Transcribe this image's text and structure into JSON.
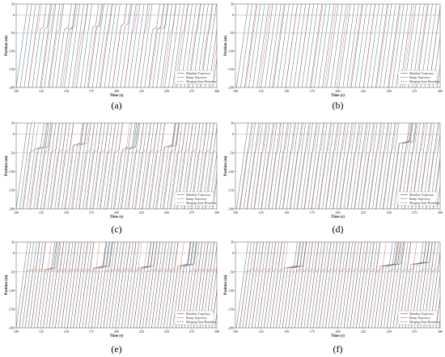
{
  "colors": {
    "mainline": "#5f7d8e",
    "ramp": "#d0452f",
    "boundary": "#8a8a8a"
  },
  "chart_data": [
    {
      "type": "line",
      "caption": "(a)",
      "xlabel": "Time (s)",
      "ylabel": "Position (m)",
      "xlim": [
        100,
        300
      ],
      "ylim": [
        -200,
        30
      ],
      "xticks": [
        "100",
        "125",
        "150",
        "175",
        "200",
        "225",
        "250",
        "275",
        "300"
      ],
      "yticks": [
        "30",
        "0",
        "-50",
        "-100",
        "-150",
        "-200"
      ],
      "merging_zone": [
        0,
        -50
      ],
      "legend": {
        "placement": "bottom-right",
        "entries": [
          "Mainline Trajectory",
          "Ramp Trajectory",
          "Merging Zone Boundary"
        ]
      },
      "mainline_entries": [
        100,
        104,
        108,
        112,
        116,
        120,
        124,
        128,
        132,
        136,
        140,
        144,
        148,
        152,
        156,
        160,
        164,
        168,
        172,
        176,
        180,
        184,
        188,
        192,
        196,
        200,
        204,
        208,
        212,
        216,
        220,
        224,
        228,
        232,
        236,
        240,
        244,
        248,
        252,
        256,
        260,
        264,
        268,
        272,
        276,
        280,
        284,
        288,
        292,
        296
      ],
      "ramp_entries": [
        112,
        125,
        133,
        146,
        158,
        171,
        183,
        196,
        208,
        220,
        233,
        246,
        258,
        271,
        283,
        294
      ],
      "slowdowns": [
        {
          "time": 125,
          "position": -40,
          "delay": 3
        },
        {
          "time": 150,
          "position": -40,
          "delay": 4
        },
        {
          "time": 178,
          "position": -35,
          "delay": 3
        },
        {
          "time": 205,
          "position": -30,
          "delay": 3
        },
        {
          "time": 240,
          "position": -40,
          "delay": 4
        }
      ],
      "ramp_wait": 2,
      "speed_mps": 20
    },
    {
      "type": "line",
      "caption": "(b)",
      "xlabel": "Time (s)",
      "ylabel": "Position (m)",
      "xlim": [
        100,
        300
      ],
      "ylim": [
        -200,
        30
      ],
      "xticks": [
        "100",
        "125",
        "150",
        "175",
        "200",
        "225",
        "250",
        "275",
        "300"
      ],
      "yticks": [
        "30",
        "0",
        "-50",
        "-100",
        "-150",
        "-200"
      ],
      "merging_zone": [
        0,
        -50
      ],
      "legend": {
        "placement": "bottom-right",
        "entries": [
          "Mainline Trajectory",
          "Ramp Trajectory",
          "Merging Zone Boundary"
        ]
      },
      "mainline_entries": [
        101,
        105,
        109,
        113,
        117,
        121,
        125,
        129,
        133,
        137,
        141,
        145,
        149,
        153,
        157,
        161,
        165,
        169,
        173,
        177,
        181,
        185,
        189,
        193,
        197,
        201,
        205,
        209,
        213,
        217,
        221,
        225,
        229,
        233,
        237,
        241,
        245,
        249,
        253,
        257,
        261,
        265,
        269,
        273,
        277,
        281,
        285,
        289,
        293,
        297
      ],
      "ramp_entries": [
        110,
        123,
        136,
        149,
        161,
        174,
        187,
        199,
        212,
        225,
        238,
        250,
        263,
        276,
        289
      ],
      "slowdowns": [],
      "ramp_wait": 0,
      "speed_mps": 20
    },
    {
      "type": "line",
      "caption": "(c)",
      "xlabel": "Time (s)",
      "ylabel": "Position (m)",
      "xlim": [
        100,
        300
      ],
      "ylim": [
        -200,
        30
      ],
      "xticks": [
        "100",
        "125",
        "150",
        "175",
        "200",
        "225",
        "250",
        "275",
        "300"
      ],
      "yticks": [
        "30",
        "0",
        "-50",
        "-100",
        "-150",
        "-200"
      ],
      "merging_zone": [
        0,
        -50
      ],
      "legend": {
        "placement": "bottom-right",
        "entries": [
          "Mainline Trajectory",
          "Ramp Trajectory",
          "Merging Zone Boundary"
        ]
      },
      "mainline_entries": [
        100,
        103.5,
        107,
        110.5,
        114,
        117.5,
        121,
        124.5,
        128,
        131.5,
        135,
        138.5,
        142,
        145.5,
        149,
        152.5,
        156,
        159.5,
        163,
        166.5,
        170,
        173.5,
        177,
        180.5,
        184,
        187.5,
        191,
        194.5,
        198,
        201.5,
        205,
        208.5,
        212,
        215.5,
        219,
        222.5,
        226,
        229.5,
        233,
        236.5,
        240,
        243.5,
        247,
        250.5,
        254,
        257.5,
        261,
        264.5,
        268,
        271.5,
        275,
        278.5,
        282,
        285.5,
        289,
        292.5,
        296
      ],
      "ramp_entries": [
        106,
        113,
        120,
        127,
        134,
        141,
        148,
        155,
        162,
        169,
        176,
        183,
        190,
        197,
        204,
        211,
        218,
        225,
        232,
        239,
        246,
        253,
        260,
        267,
        274,
        281,
        288,
        295
      ],
      "slowdowns": [
        {
          "time": 122,
          "position": -40,
          "delay": 6
        },
        {
          "time": 160,
          "position": -30,
          "delay": 7
        },
        {
          "time": 210,
          "position": -40,
          "delay": 6
        },
        {
          "time": 250,
          "position": -35,
          "delay": 8
        }
      ],
      "ramp_wait": 5,
      "speed_mps": 20
    },
    {
      "type": "line",
      "caption": "(d)",
      "xlabel": "Time (s)",
      "ylabel": "Position (m)",
      "xlim": [
        100,
        300
      ],
      "ylim": [
        -200,
        30
      ],
      "xticks": [
        "100",
        "125",
        "150",
        "175",
        "200",
        "225",
        "250",
        "275",
        "300"
      ],
      "yticks": [
        "30",
        "0",
        "-50",
        "-100",
        "-150",
        "-200"
      ],
      "merging_zone": [
        0,
        -50
      ],
      "legend": {
        "placement": "bottom-right",
        "entries": [
          "Mainline Trajectory",
          "Ramp Trajectory",
          "Merging Zone Boundary"
        ]
      },
      "mainline_entries": [
        101,
        104.5,
        108,
        111.5,
        115,
        118.5,
        122,
        125.5,
        129,
        132.5,
        136,
        139.5,
        143,
        146.5,
        150,
        153.5,
        157,
        160.5,
        164,
        167.5,
        171,
        174.5,
        178,
        181.5,
        185,
        188.5,
        192,
        195.5,
        199,
        202.5,
        206,
        209.5,
        213,
        216.5,
        220,
        223.5,
        227,
        230.5,
        234,
        237.5,
        241,
        244.5,
        248,
        251.5,
        255,
        258.5,
        262,
        265.5,
        269,
        272.5,
        276,
        279.5,
        283,
        286.5,
        290,
        293.5,
        297
      ],
      "ramp_entries": [
        104,
        111,
        118,
        125,
        132,
        139,
        146,
        153,
        160,
        167,
        174,
        181,
        188,
        195,
        202,
        209,
        216,
        223,
        230,
        237,
        244,
        251,
        258,
        265,
        272,
        279,
        286,
        293
      ],
      "slowdowns": [
        {
          "time": 262,
          "position": -25,
          "delay": 10
        }
      ],
      "ramp_wait": 2,
      "speed_mps": 20
    },
    {
      "type": "line",
      "caption": "(e)",
      "xlabel": "Time (s)",
      "ylabel": "Position (m)",
      "xlim": [
        100,
        300
      ],
      "ylim": [
        -200,
        30
      ],
      "xticks": [
        "100",
        "125",
        "150",
        "175",
        "200",
        "225",
        "250",
        "275",
        "300"
      ],
      "yticks": [
        "30",
        "0",
        "-50",
        "-100",
        "-150",
        "-200"
      ],
      "merging_zone": [
        0,
        -50
      ],
      "legend": {
        "placement": "bottom-right",
        "entries": [
          "Mainline Trajectory",
          "Ramp Trajectory",
          "Merging Zone Boundary"
        ]
      },
      "mainline_entries": [
        100,
        103,
        106,
        109,
        112,
        115,
        118,
        121,
        124,
        127,
        130,
        133,
        136,
        139,
        142,
        145,
        148,
        151,
        154,
        157,
        160,
        163,
        166,
        169,
        172,
        175,
        178,
        181,
        184,
        187,
        190,
        193,
        196,
        199,
        202,
        205,
        208,
        211,
        214,
        217,
        220,
        223,
        226,
        229,
        232,
        235,
        238,
        241,
        244,
        247,
        250,
        253,
        256,
        259,
        262,
        265,
        268,
        271,
        274,
        277,
        280,
        283,
        286,
        289,
        292,
        295,
        298
      ],
      "ramp_entries": [
        103,
        109,
        115,
        121,
        127,
        133,
        139,
        145,
        151,
        157,
        163,
        169,
        175,
        181,
        187,
        193,
        199,
        205,
        211,
        217,
        223,
        229,
        235,
        241,
        247,
        253,
        259,
        265,
        271,
        277,
        283,
        289,
        295
      ],
      "slowdowns": [
        {
          "time": 130,
          "position": -45,
          "delay": 8
        },
        {
          "time": 180,
          "position": -40,
          "delay": 10
        },
        {
          "time": 225,
          "position": -40,
          "delay": 9
        },
        {
          "time": 265,
          "position": -35,
          "delay": 10
        }
      ],
      "ramp_wait": 9,
      "speed_mps": 20
    },
    {
      "type": "line",
      "caption": "(f)",
      "xlabel": "Time (s)",
      "ylabel": "Position (m)",
      "xlim": [
        100,
        300
      ],
      "ylim": [
        -200,
        30
      ],
      "xticks": [
        "100",
        "125",
        "150",
        "175",
        "200",
        "225",
        "250",
        "275",
        "300"
      ],
      "yticks": [
        "30",
        "0",
        "-50",
        "-100",
        "-150",
        "-200"
      ],
      "merging_zone": [
        0,
        -50
      ],
      "legend": {
        "placement": "bottom-right",
        "entries": [
          "Mainline Trajectory",
          "Ramp Trajectory",
          "Merging Zone Boundary"
        ]
      },
      "mainline_entries": [
        101,
        104,
        107,
        110,
        113,
        116,
        119,
        122,
        125,
        128,
        131,
        134,
        137,
        140,
        143,
        146,
        149,
        152,
        155,
        158,
        161,
        164,
        167,
        170,
        173,
        176,
        179,
        182,
        185,
        188,
        191,
        194,
        197,
        200,
        203,
        206,
        209,
        212,
        215,
        218,
        221,
        224,
        227,
        230,
        233,
        236,
        239,
        242,
        245,
        248,
        251,
        254,
        257,
        260,
        263,
        266,
        269,
        272,
        275,
        278,
        281,
        284,
        287,
        290,
        293,
        296,
        299
      ],
      "ramp_entries": [
        104,
        110,
        116,
        122,
        128,
        134,
        140,
        146,
        152,
        158,
        164,
        170,
        176,
        182,
        188,
        194,
        200,
        206,
        212,
        218,
        224,
        230,
        236,
        242,
        248,
        254,
        260,
        266,
        272,
        278,
        284,
        290,
        296
      ],
      "slowdowns": [
        {
          "time": 150,
          "position": -40,
          "delay": 12
        },
        {
          "time": 245,
          "position": -35,
          "delay": 14
        },
        {
          "time": 275,
          "position": -30,
          "delay": 12
        }
      ],
      "ramp_wait": 6,
      "speed_mps": 20
    }
  ]
}
